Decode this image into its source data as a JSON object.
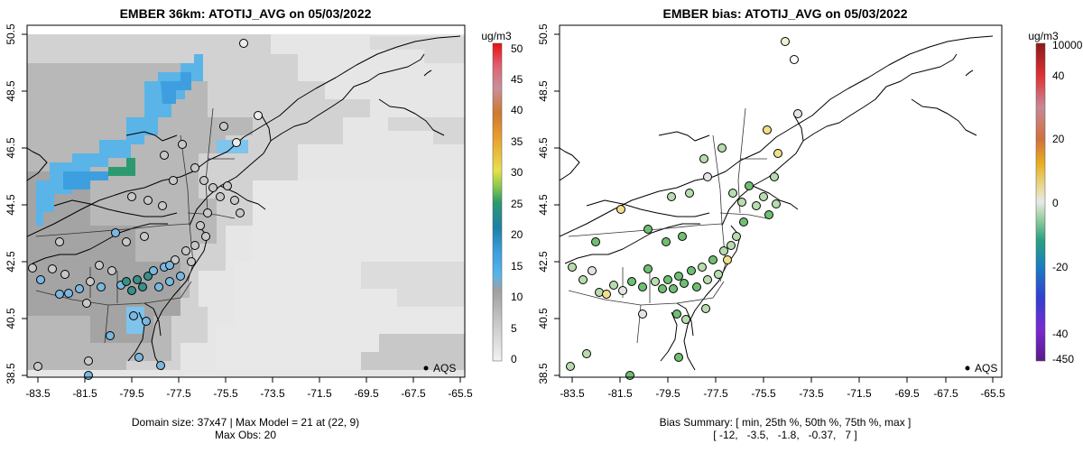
{
  "colors": {
    "tile_light": "#e6e6e6",
    "tile_mid": "#d2d2d2",
    "tile_dark": "#b8b8b8",
    "tile_darker": "#a4a4a4",
    "plume_blue": "#5ab4e8",
    "plume_blue_dark": "#3d9fe0",
    "obs_gray": "#c8c8c8",
    "obs_blue": "#7ab8e0",
    "obs_teal": "#3a8f8a",
    "bias_green": "#b7dcae",
    "bias_green_dark": "#6fbf73",
    "bias_neutral": "#e4e4e4",
    "bias_yellow": "#f0e08a"
  },
  "left": {
    "title": "EMBER 36km: ATOTIJ_AVG on 05/03/2022",
    "x_ticks": [
      "-83.5",
      "-81.5",
      "-79.5",
      "-77.5",
      "-75.5",
      "-73.5",
      "-71.5",
      "-69.5",
      "-67.5",
      "-65.5"
    ],
    "y_ticks": [
      "50.5",
      "48.5",
      "46.5",
      "44.5",
      "42.5",
      "40.5",
      "38.5"
    ],
    "legend_label": "AQS",
    "colorbar": {
      "unit": "ug/m3",
      "ticks": [
        "50",
        "45",
        "40",
        "35",
        "30",
        "25",
        "20",
        "15",
        "10",
        "5",
        "0"
      ],
      "min": 0,
      "max": 50
    },
    "footer_line1": "Domain size: 37x47 | Max Model = 21 at (22, 9)",
    "footer_line2": "Max Obs: 20"
  },
  "right": {
    "title": "EMBER bias: ATOTIJ_AVG on 05/03/2022",
    "x_ticks": [
      "-83.5",
      "-81.5",
      "-79.5",
      "-77.5",
      "-75.5",
      "-73.5",
      "-71.5",
      "-69.5",
      "-67.5",
      "-65.5"
    ],
    "y_ticks": [
      "50.5",
      "48.5",
      "46.5",
      "44.5",
      "42.5",
      "40.5",
      "38.5"
    ],
    "legend_label": "AQS",
    "colorbar": {
      "unit": "ug/m3",
      "ticks": [
        "10000",
        "40",
        "20",
        "0",
        "-20",
        "-40",
        "-450"
      ]
    },
    "footer_line1": "Bias Summary: [ min, 25th %, 50th %, 75th %, max ]",
    "footer_line2": "[ -12,   -3.5,   -1.8,   -0.37,   7 ]"
  }
}
